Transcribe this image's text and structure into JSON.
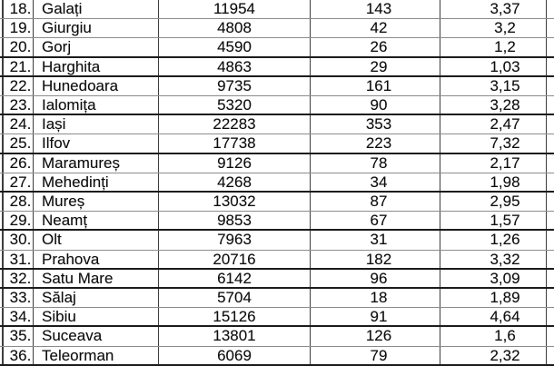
{
  "table": {
    "rows": [
      {
        "num": "18.",
        "county": "Galați",
        "v1": "11954",
        "v2": "143",
        "v3": "3,37"
      },
      {
        "num": "19.",
        "county": "Giurgiu",
        "v1": "4808",
        "v2": "42",
        "v3": "3,2"
      },
      {
        "num": "20.",
        "county": "Gorj",
        "v1": "4590",
        "v2": "26",
        "v3": "1,2"
      },
      {
        "num": "21.",
        "county": "Harghita",
        "v1": "4863",
        "v2": "29",
        "v3": "1,03"
      },
      {
        "num": "22.",
        "county": "Hunedoara",
        "v1": "9735",
        "v2": "161",
        "v3": "3,15"
      },
      {
        "num": "23.",
        "county": "Ialomița",
        "v1": "5320",
        "v2": "90",
        "v3": "3,28"
      },
      {
        "num": "24.",
        "county": "Iași",
        "v1": "22283",
        "v2": "353",
        "v3": "2,47"
      },
      {
        "num": "25.",
        "county": "Ilfov",
        "v1": "17738",
        "v2": "223",
        "v3": "7,32"
      },
      {
        "num": "26.",
        "county": "Maramureș",
        "v1": "9126",
        "v2": "78",
        "v3": "2,17"
      },
      {
        "num": "27.",
        "county": "Mehedinți",
        "v1": "4268",
        "v2": "34",
        "v3": "1,98"
      },
      {
        "num": "28.",
        "county": "Mureș",
        "v1": "13032",
        "v2": "87",
        "v3": "2,95"
      },
      {
        "num": "29.",
        "county": "Neamț",
        "v1": "9853",
        "v2": "67",
        "v3": "1,57"
      },
      {
        "num": "30.",
        "county": "Olt",
        "v1": "7963",
        "v2": "31",
        "v3": "1,26"
      },
      {
        "num": "31.",
        "county": "Prahova",
        "v1": "20716",
        "v2": "182",
        "v3": "3,32"
      },
      {
        "num": "32.",
        "county": "Satu Mare",
        "v1": "6142",
        "v2": "96",
        "v3": "3,09"
      },
      {
        "num": "33.",
        "county": "Sălaj",
        "v1": "5704",
        "v2": "18",
        "v3": "1,89"
      },
      {
        "num": "34.",
        "county": "Sibiu",
        "v1": "15126",
        "v2": "91",
        "v3": "4,64"
      },
      {
        "num": "35.",
        "county": "Suceava",
        "v1": "13801",
        "v2": "126",
        "v3": "1,6"
      },
      {
        "num": "36.",
        "county": "Teleorman",
        "v1": "6069",
        "v2": "79",
        "v3": "2,32"
      }
    ]
  }
}
